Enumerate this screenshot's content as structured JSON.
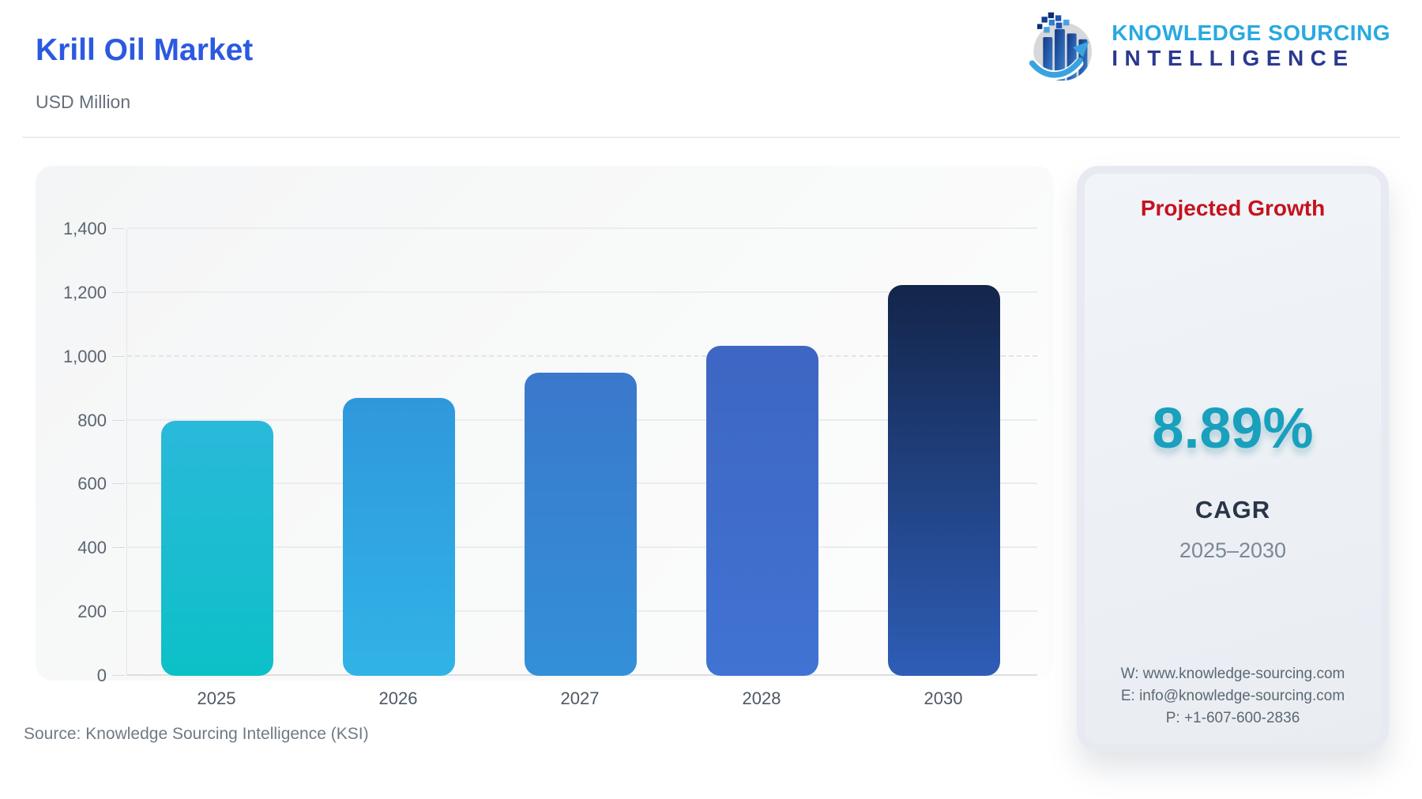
{
  "header": {
    "title": "Krill Oil Market",
    "subtitle": "USD Million"
  },
  "logo": {
    "line1": "KNOWLEDGE SOURCING",
    "line2": "INTELLIGENCE",
    "icon": "bar-chart-globe-arrow-icon",
    "line1_color": "#29a9e0",
    "line2_color": "#2b3990"
  },
  "chart_data": {
    "type": "bar",
    "title": "Krill Oil Market",
    "units_label": "USD Million",
    "categories": [
      "2025",
      "2026",
      "2027",
      "2028",
      "2030"
    ],
    "values": [
      800,
      870,
      950,
      1035,
      1225
    ],
    "ylim": [
      0,
      1400
    ],
    "ytick_interval": 200,
    "ytick_labels": [
      "0",
      "200",
      "400",
      "600",
      "800",
      "1,000",
      "1,200",
      "1,400"
    ],
    "grid": true,
    "dashed_gridline_value": 1000,
    "legend": "none",
    "bar_gradients": [
      [
        "#2ab9da",
        "#0cc0c7"
      ],
      [
        "#2f98db",
        "#31b3e7"
      ],
      [
        "#3a78cc",
        "#3390d8"
      ],
      [
        "#3e66c3",
        "#4073d3"
      ],
      [
        "#13254a",
        "#2e5db6"
      ]
    ]
  },
  "growth_panel": {
    "title": "Projected Growth",
    "title_color": "#c5121e",
    "percentage": "8.89%",
    "percentage_color": "#18a0bd",
    "metric_label": "CAGR",
    "period": "2025–2030",
    "contact": {
      "website": "W: www.knowledge-sourcing.com",
      "email": "E: info@knowledge-sourcing.com",
      "phone": "P: +1-607-600-2836"
    }
  },
  "footer": {
    "source": "Source: Knowledge Sourcing Intelligence (KSI)"
  }
}
